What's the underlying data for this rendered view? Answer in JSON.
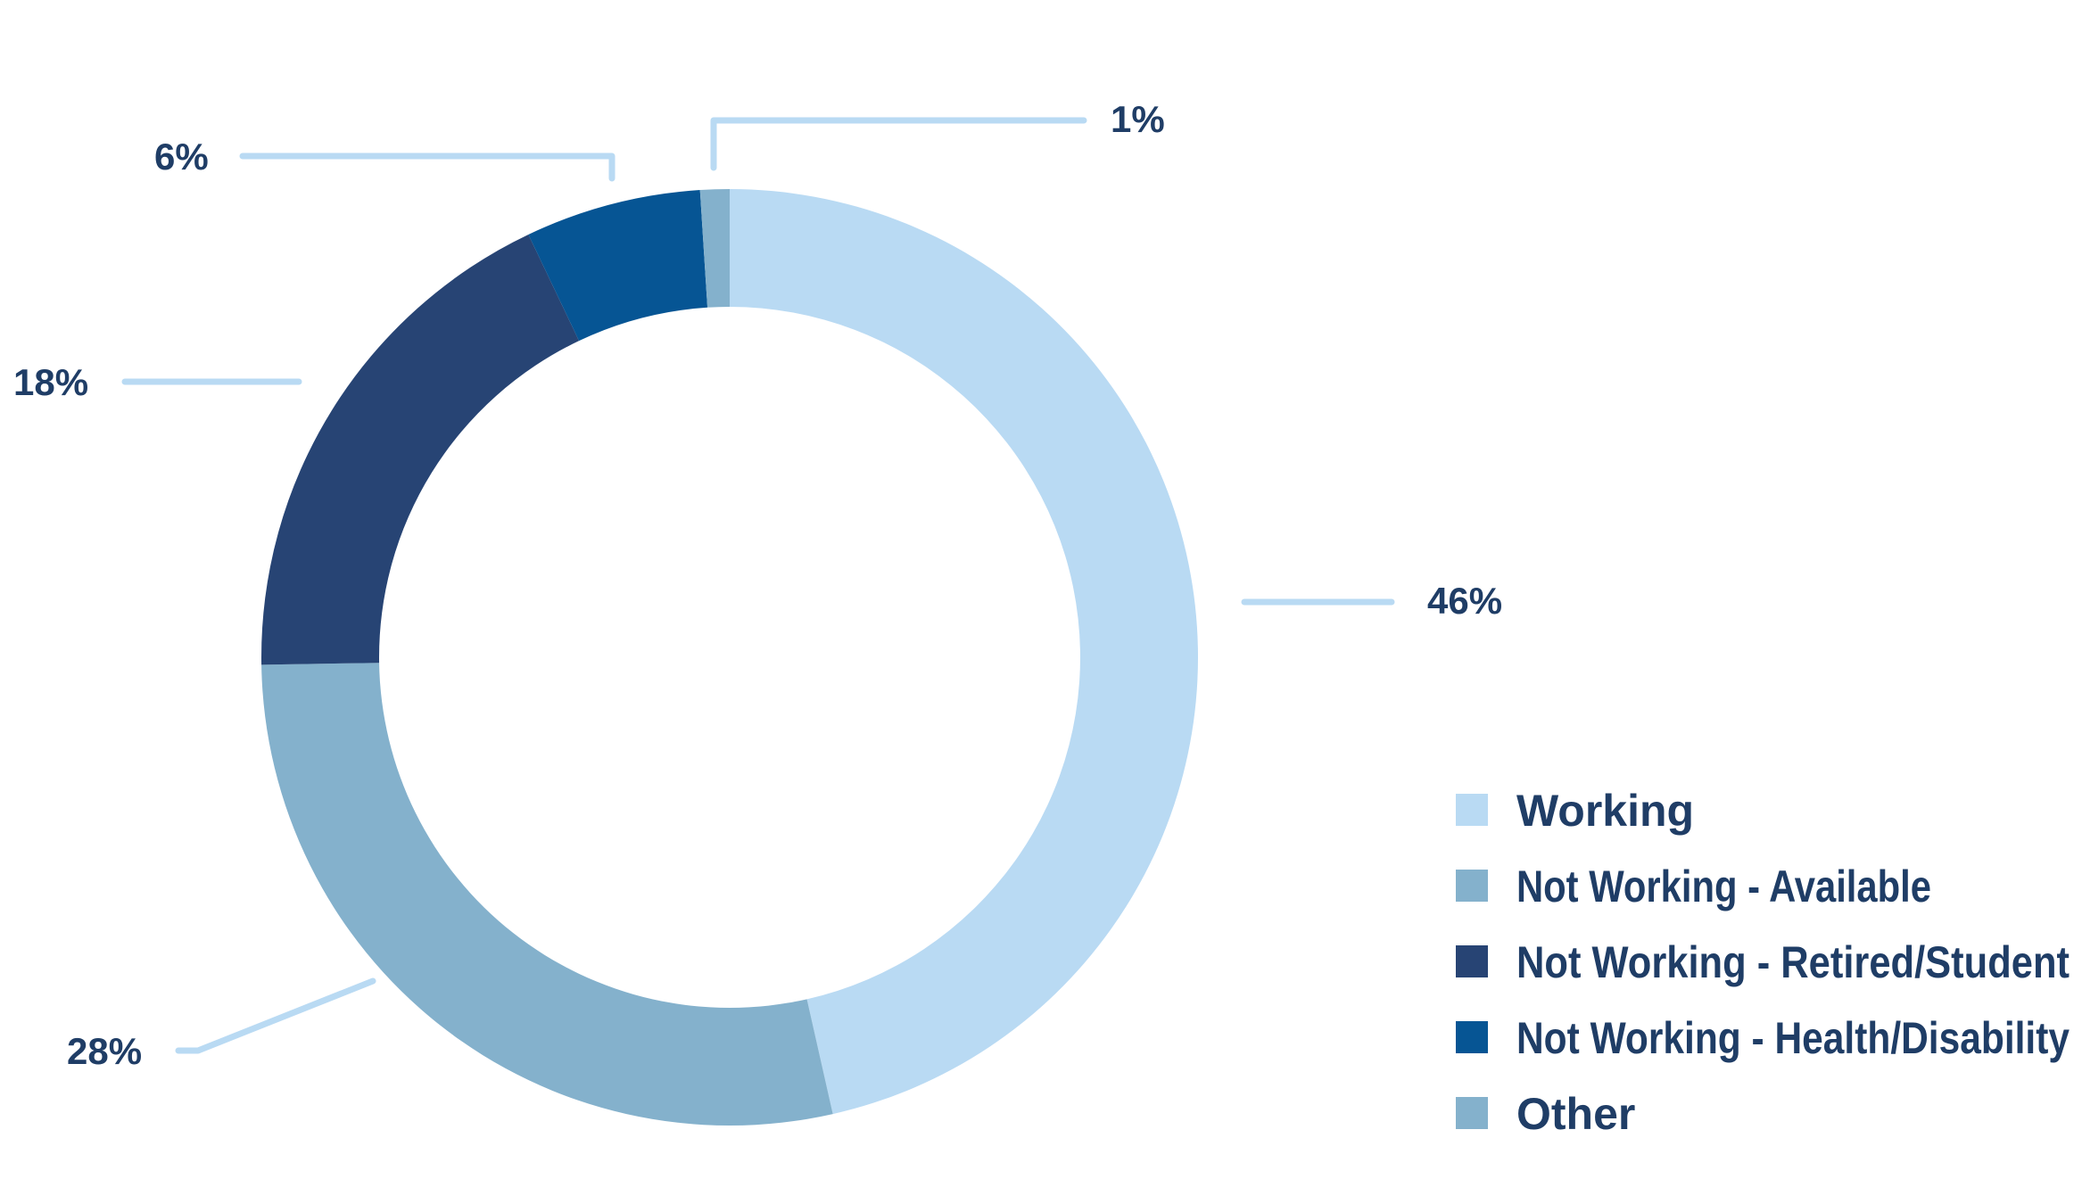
{
  "chart_data": {
    "type": "pie",
    "variant": "donut",
    "title": "",
    "series": [
      {
        "name": "Working",
        "value": 46,
        "label": "46%",
        "color": "#b9daf3"
      },
      {
        "name": "Not Working - Available",
        "value": 28,
        "label": "28%",
        "color": "#84b1cc"
      },
      {
        "name": "Not Working - Retired/Student",
        "value": 18,
        "label": "18%",
        "color": "#274474"
      },
      {
        "name": "Not Working - Health/Disability",
        "value": 6,
        "label": "6%",
        "color": "#065594"
      },
      {
        "name": "Other",
        "value": 1,
        "label": "1%",
        "color": "#84b1cc"
      }
    ],
    "legend_position": "bottom-right",
    "leader_line_color": "#b9daf3",
    "text_color": "#1f3d66"
  }
}
